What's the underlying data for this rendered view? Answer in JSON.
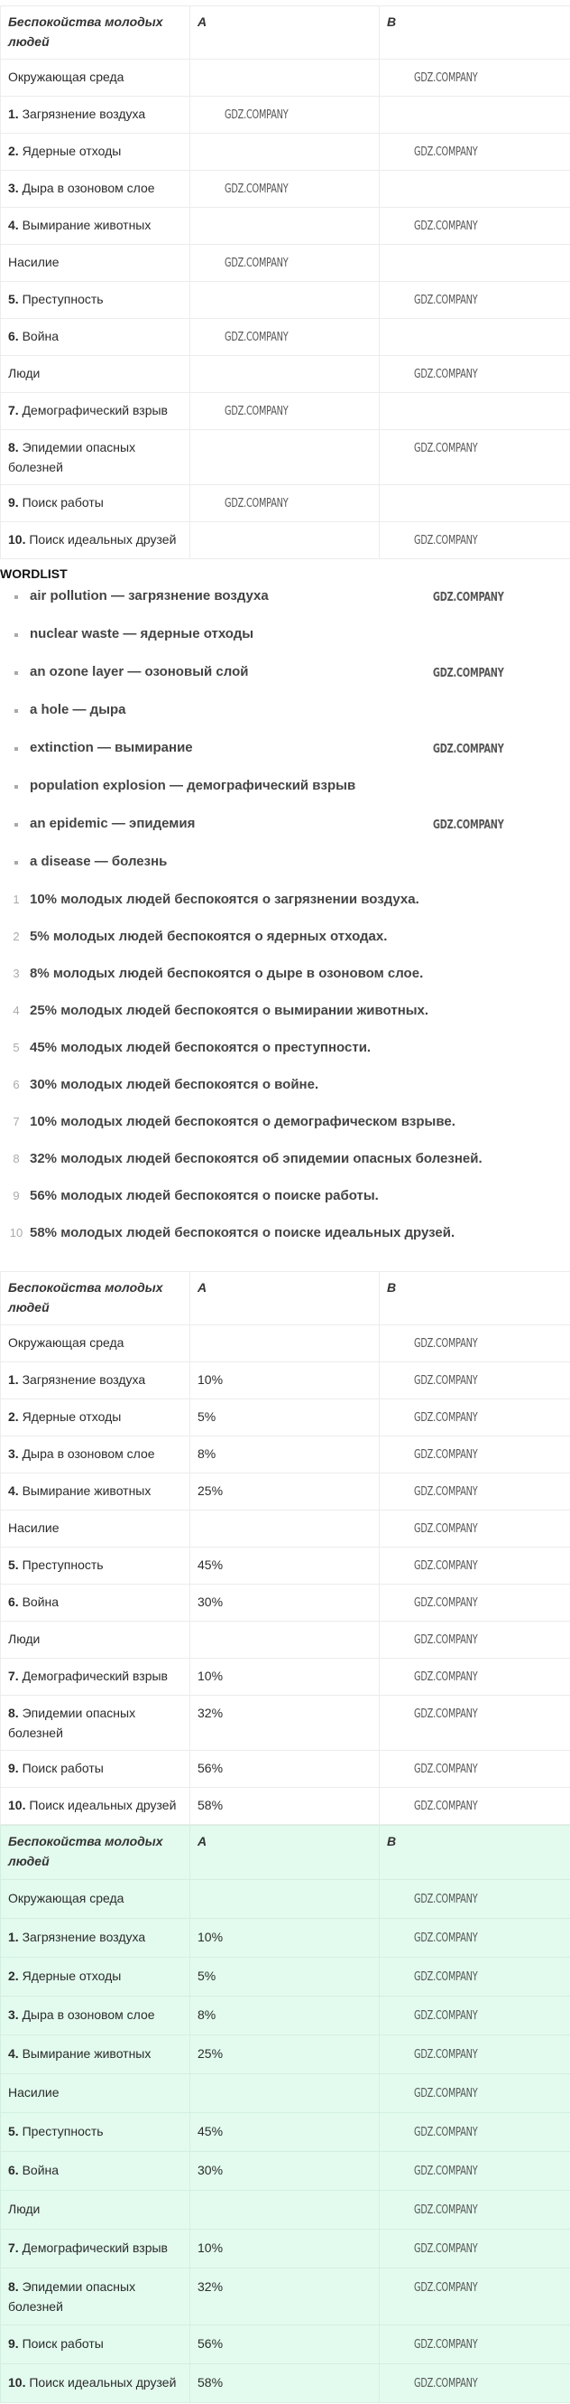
{
  "watermark": "GDZ.COMPANY",
  "table_header": {
    "c1": "Беспокойства молодых людей",
    "c2": "A",
    "c3": "B"
  },
  "rows": [
    {
      "num": "",
      "label": "Окружающая среда",
      "a": ""
    },
    {
      "num": "1.",
      "label": " Загрязнение воздуха",
      "a": "10%"
    },
    {
      "num": "2.",
      "label": " Ядерные отходы",
      "a": "5%"
    },
    {
      "num": "3.",
      "label": " Дыра в озоновом слое",
      "a": "8%"
    },
    {
      "num": "4.",
      "label": " Вымирание животных",
      "a": "25%"
    },
    {
      "num": "",
      "label": "Насилие",
      "a": ""
    },
    {
      "num": "5.",
      "label": " Преступность",
      "a": "45%"
    },
    {
      "num": "6.",
      "label": " Война",
      "a": "30%"
    },
    {
      "num": "",
      "label": "Люди",
      "a": ""
    },
    {
      "num": "7.",
      "label": " Демографический взрыв",
      "a": "10%"
    },
    {
      "num": "8.",
      "label": " Эпидемии опасных болезней",
      "a": "32%"
    },
    {
      "num": "9.",
      "label": " Поиск работы",
      "a": "56%"
    },
    {
      "num": "10.",
      "label": " Поиск идеальных друзей",
      "a": "58%"
    }
  ],
  "wordlist": {
    "title": "WORDLIST",
    "items": [
      "air pollution — загрязнение воздуха",
      "nuclear waste — ядерные отходы",
      "an ozone layer — озоновый слой",
      "a hole — дыра",
      "extinction — вымирание",
      "population explosion — демографический взрыв",
      "an epidemic — эпидемия",
      "a disease — болезнь"
    ]
  },
  "sentences": [
    {
      "n": "1",
      "text": "10% молодых людей беспокоятся о загрязнении воздуха."
    },
    {
      "n": "2",
      "text": "5% молодых людей беспокоятся о ядерных отходах."
    },
    {
      "n": "3",
      "text": "8% молодых людей беспокоятся о дыре в озоновом слое."
    },
    {
      "n": "4",
      "text": "25% молодых людей беспокоятся о вымирании животных."
    },
    {
      "n": "5",
      "text": "45% молодых людей беспокоятся о преступности."
    },
    {
      "n": "6",
      "text": "30% молодых людей беспокоятся о войне."
    },
    {
      "n": "7",
      "text": "10% молодых людей беспокоятся о демографическом взрыве."
    },
    {
      "n": "8",
      "text": "32% молодых людей беспокоятся об эпидемии опасных болезней."
    },
    {
      "n": "9",
      "text": "56% молодых людей беспокоятся о поиске работы."
    },
    {
      "n": "10",
      "text": "58% молодых людей беспокоятся о поиске идеальных друзей."
    }
  ],
  "colors": {
    "answer_bg": "#e2fbee",
    "border": "#ececec"
  }
}
